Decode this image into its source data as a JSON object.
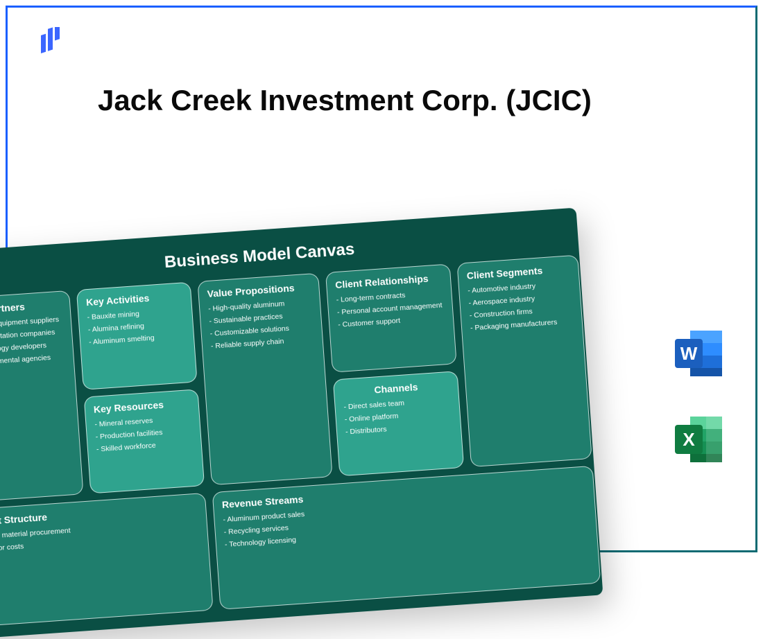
{
  "title": "Jack Creek Investment Corp. (JCIC)",
  "logo": {
    "color": "#3b66ff"
  },
  "canvas": {
    "title": "Business Model Canvas",
    "bg_color": "#0a4f44",
    "box_light": "#2fa38e",
    "box_mid": "#1f7e6d",
    "border_color": "rgba(255,255,255,.7)",
    "title_fontsize": 24,
    "header_fontsize": 14,
    "item_fontsize": 10.5,
    "boxes": {
      "key_partners": {
        "title": "Key Partners",
        "items": [
          "Mining equipment suppliers",
          "Transportation companies",
          "Technology developers",
          "Environmental agencies"
        ]
      },
      "key_activities": {
        "title": "Key Activities",
        "items": [
          "Bauxite mining",
          "Alumina refining",
          "Aluminum smelting"
        ]
      },
      "key_resources": {
        "title": "Key Resources",
        "items": [
          "Mineral reserves",
          "Production facilities",
          "Skilled workforce"
        ]
      },
      "value_propositions": {
        "title": "Value Propositions",
        "items": [
          "High-quality aluminum",
          "Sustainable practices",
          "Customizable solutions",
          "Reliable supply chain"
        ]
      },
      "client_relationships": {
        "title": "Client Relationships",
        "items": [
          "Long-term contracts",
          "Personal account management",
          "Customer support"
        ]
      },
      "channels": {
        "title": "Channels",
        "items": [
          "Direct sales team",
          "Online platform",
          "Distributors"
        ]
      },
      "client_segments": {
        "title": "Client Segments",
        "items": [
          "Automotive industry",
          "Aerospace industry",
          "Construction firms",
          "Packaging manufacturers"
        ]
      },
      "cost_structure": {
        "title": "Cost Structure",
        "items": [
          "Raw material procurement",
          "Labor costs"
        ]
      },
      "revenue_streams": {
        "title": "Revenue Streams",
        "items": [
          "Aluminum product sales",
          "Recycling services",
          "Technology licensing"
        ]
      }
    }
  },
  "icons": {
    "word": {
      "letter": "W",
      "colors": {
        "front": "#1b5fbe",
        "back1": "#2e8dff",
        "back2": "#1e6fd9",
        "back3": "#1554a8"
      }
    },
    "excel": {
      "letter": "X",
      "colors": {
        "front": "#107c41",
        "back1": "#3fc082",
        "back2": "#21a366",
        "back3": "#0e703b"
      }
    }
  }
}
